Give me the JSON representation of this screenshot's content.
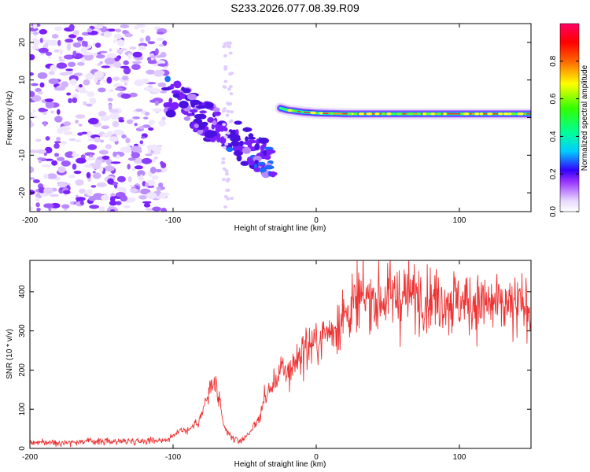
{
  "title": "S233.2026.077.08.39.R09",
  "colors": {
    "snr_line": "#ee3333",
    "ridge_core": "#ee3333",
    "frame": "#000000"
  },
  "chart_data": [
    {
      "type": "heatmap",
      "title": "S233.2026.077.08.39.R09",
      "xlabel": "Height of straight line (km)",
      "ylabel": "Frequency (Hz)",
      "xlim": [
        -200,
        150
      ],
      "ylim": [
        -25,
        25
      ],
      "xticks": [
        "-200",
        "-100",
        "0",
        "100"
      ],
      "xtick_values": [
        -200,
        -100,
        0,
        100
      ],
      "yticks": [
        "20",
        "10",
        "0",
        "-10",
        "-20"
      ],
      "ytick_values": [
        20,
        10,
        0,
        -10,
        -20
      ],
      "colorbar": {
        "label": "Normalized spectral amplitude",
        "range": [
          0,
          1
        ],
        "ticks": [
          "0.8",
          "0.6",
          "0.4",
          "0.2",
          "0.0"
        ],
        "tick_values": [
          0.8,
          0.6,
          0.4,
          0.2,
          0.0
        ]
      },
      "ridge": {
        "description": "narrow high-amplitude tone near 1 Hz from about -25 km onward",
        "x": [
          -25,
          -20,
          -10,
          0,
          20,
          50,
          100,
          150
        ],
        "y": [
          2.5,
          2.0,
          1.5,
          1.2,
          1.0,
          1.0,
          1.0,
          1.0
        ]
      },
      "noise_region": {
        "x_range": [
          -200,
          -105
        ],
        "amplitude_range": [
          0.05,
          0.3
        ]
      },
      "scatter_region": {
        "x_range": [
          -105,
          -30
        ],
        "y_range": [
          -18,
          15
        ]
      }
    },
    {
      "type": "line",
      "xlabel": "Height of straight line (km)",
      "ylabel": "SNR (10 * v/v)",
      "xlim": [
        -200,
        150
      ],
      "ylim": [
        0,
        480
      ],
      "xticks": [
        "-200",
        "-100",
        "0",
        "100"
      ],
      "xtick_values": [
        -200,
        -100,
        0,
        100
      ],
      "yticks": [
        "0",
        "100",
        "200",
        "300",
        "400"
      ],
      "ytick_values": [
        0,
        100,
        200,
        300,
        400
      ],
      "series": [
        {
          "name": "SNR",
          "x": [
            -200,
            -180,
            -160,
            -140,
            -120,
            -105,
            -100,
            -95,
            -90,
            -85,
            -80,
            -77,
            -74,
            -71,
            -68,
            -65,
            -62,
            -58,
            -55,
            -52,
            -48,
            -45,
            -42,
            -40,
            -38,
            -36,
            -34,
            -32,
            -30,
            -28,
            -25,
            -22,
            -18,
            -15,
            -10,
            -5,
            0,
            5,
            10,
            15,
            20,
            25,
            30,
            35,
            40,
            50,
            60,
            70,
            80,
            90,
            100,
            110,
            120,
            130,
            140,
            150
          ],
          "values": [
            15,
            15,
            18,
            18,
            20,
            22,
            30,
            50,
            45,
            60,
            85,
            120,
            150,
            170,
            120,
            60,
            40,
            25,
            20,
            20,
            35,
            50,
            60,
            80,
            100,
            130,
            140,
            150,
            160,
            180,
            200,
            190,
            200,
            220,
            250,
            260,
            270,
            290,
            300,
            320,
            340,
            360,
            375,
            380,
            380,
            385,
            390,
            390,
            385,
            380,
            375,
            372,
            368,
            360,
            360,
            365
          ]
        }
      ]
    }
  ]
}
